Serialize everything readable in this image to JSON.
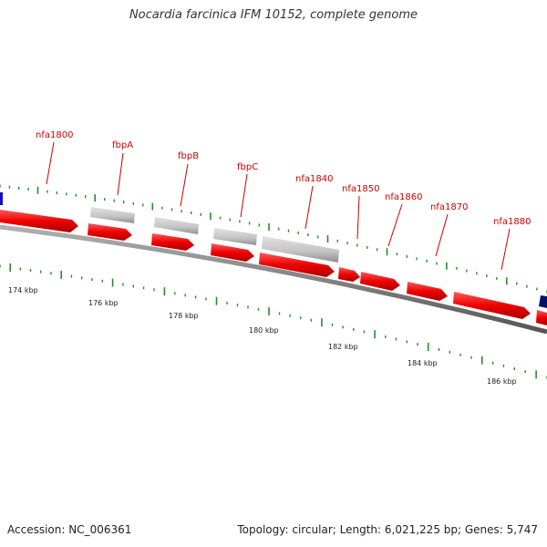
{
  "title": "Nocardia farcinica IFM 10152, complete genome",
  "footer": {
    "accession": "Accession: NC_006361",
    "summary": "Topology: circular; Length: 6,021,225 bp; Genes: 5,747"
  },
  "colors": {
    "cds": "#ff0000",
    "rna_or_pseudo": "#c8c8c8",
    "label": "#cc0000",
    "tick": "#2a8a2a",
    "backbone": "#808080",
    "other_blue": "#1010cc",
    "other_navy": "#001166"
  },
  "gene_labels": [
    "nfa1800",
    "fbpA",
    "fbpB",
    "fbpC",
    "nfa1840",
    "nfa1850",
    "nfa1860",
    "nfa1870",
    "nfa1880"
  ],
  "kbp_labels": [
    "174 kbp",
    "176 kbp",
    "178 kbp",
    "180 kbp",
    "182 kbp",
    "184 kbp",
    "186 kbp"
  ]
}
